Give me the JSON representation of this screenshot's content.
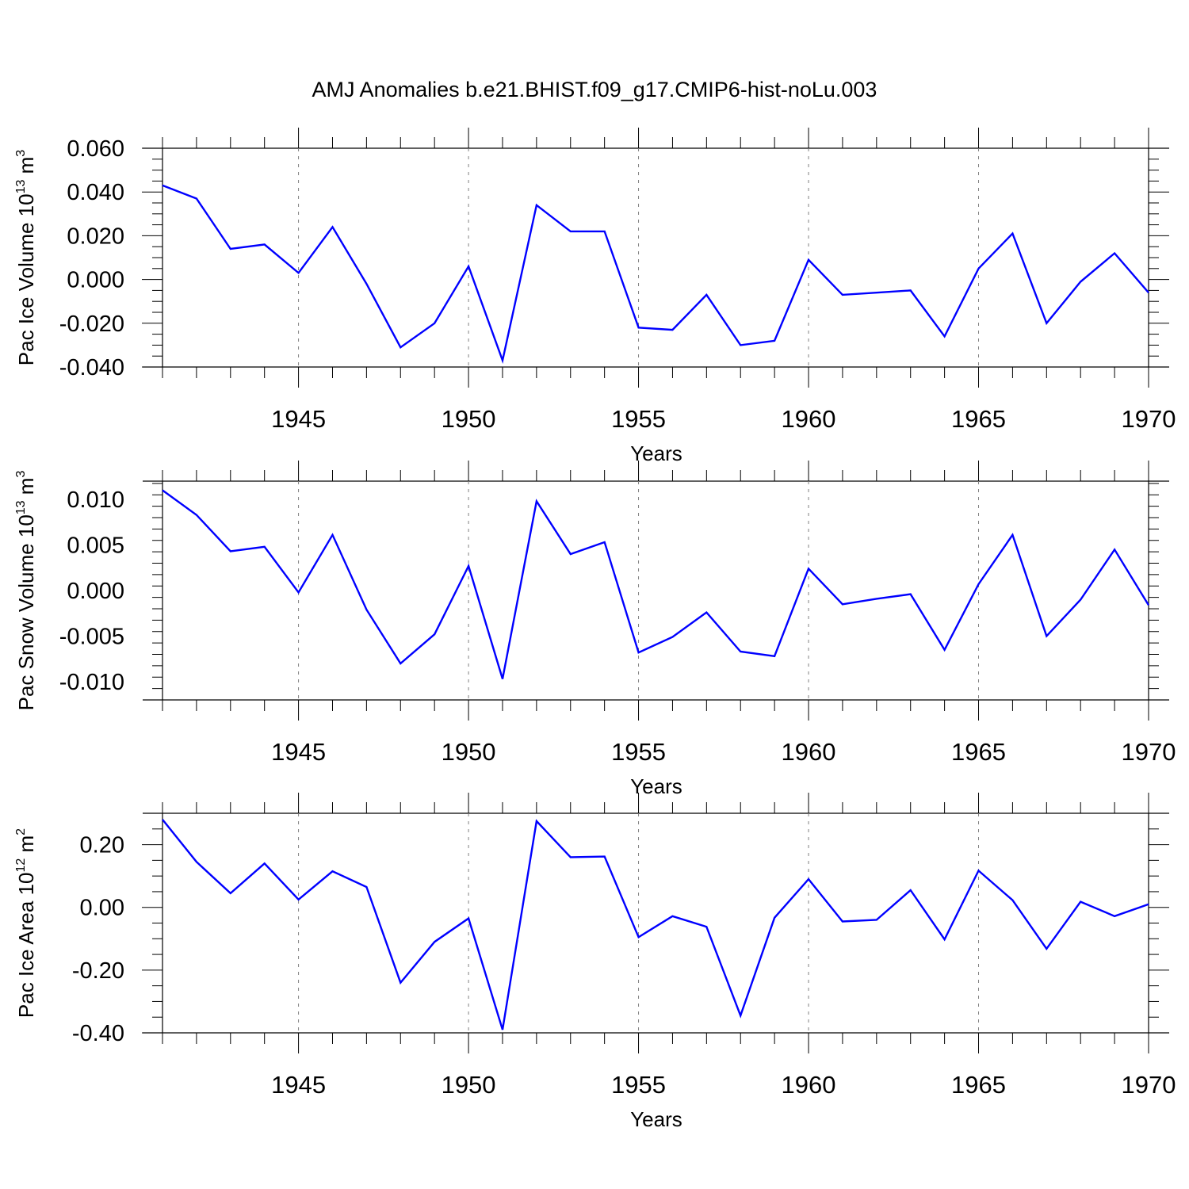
{
  "title": "AMJ Anomalies b.e21.BHIST.f09_g17.CMIP6-hist-noLu.003",
  "colors": {
    "line": "#0000ff",
    "axis": "#000000",
    "grid": "#808080"
  },
  "chart_data": [
    {
      "type": "line",
      "ylabel": "Pac Ice Volume 10",
      "ylabel_sup": "13",
      "ylabel_unit": " m",
      "ylabel_unit_sup": "3",
      "xlabel": "Years",
      "xlim": [
        1941,
        1970
      ],
      "ylim": [
        -0.04,
        0.06
      ],
      "yticks": [
        -0.04,
        -0.02,
        0.0,
        0.02,
        0.04,
        0.06
      ],
      "ytick_labels": [
        "-0.040",
        "-0.020",
        "0.000",
        "0.020",
        "0.040",
        "0.060"
      ],
      "xticks": [
        1945,
        1950,
        1955,
        1960,
        1965,
        1970
      ],
      "xtick_labels": [
        "1945",
        "1950",
        "1955",
        "1960",
        "1965",
        "1970"
      ],
      "grid": "vertical dashed at major x ticks",
      "x": [
        1941,
        1942,
        1943,
        1944,
        1945,
        1946,
        1947,
        1948,
        1949,
        1950,
        1951,
        1952,
        1953,
        1954,
        1955,
        1956,
        1957,
        1958,
        1959,
        1960,
        1961,
        1962,
        1963,
        1964,
        1965,
        1966,
        1967,
        1968,
        1969,
        1970
      ],
      "y": [
        0.043,
        0.037,
        0.014,
        0.016,
        0.003,
        0.024,
        -0.002,
        -0.031,
        -0.02,
        0.006,
        -0.037,
        0.034,
        0.022,
        0.022,
        -0.022,
        -0.023,
        -0.007,
        -0.03,
        -0.028,
        0.009,
        -0.007,
        -0.006,
        -0.005,
        -0.026,
        0.005,
        0.021,
        -0.02,
        -0.001,
        0.012,
        -0.006
      ]
    },
    {
      "type": "line",
      "ylabel": "Pac Snow Volume 10",
      "ylabel_sup": "13",
      "ylabel_unit": " m",
      "ylabel_unit_sup": "3",
      "xlabel": "Years",
      "xlim": [
        1941,
        1970
      ],
      "ylim": [
        -0.012,
        0.012
      ],
      "yticks": [
        -0.01,
        -0.005,
        0.0,
        0.005,
        0.01
      ],
      "ytick_labels": [
        "-0.010",
        "-0.005",
        "0.000",
        "0.005",
        "0.010"
      ],
      "xticks": [
        1945,
        1950,
        1955,
        1960,
        1965,
        1970
      ],
      "xtick_labels": [
        "1945",
        "1950",
        "1955",
        "1960",
        "1965",
        "1970"
      ],
      "grid": "vertical dashed at major x ticks",
      "x": [
        1941,
        1942,
        1943,
        1944,
        1945,
        1946,
        1947,
        1948,
        1949,
        1950,
        1951,
        1952,
        1953,
        1954,
        1955,
        1956,
        1957,
        1958,
        1959,
        1960,
        1961,
        1962,
        1963,
        1964,
        1965,
        1966,
        1967,
        1968,
        1969,
        1970
      ],
      "y": [
        0.011,
        0.0083,
        0.0043,
        0.0048,
        -0.0002,
        0.0061,
        -0.0021,
        -0.008,
        -0.0048,
        0.0027,
        -0.0097,
        0.0098,
        0.004,
        0.0053,
        -0.0068,
        -0.0051,
        -0.0024,
        -0.0067,
        -0.0072,
        0.0024,
        -0.0015,
        -0.0009,
        -0.0004,
        -0.0065,
        0.0007,
        0.0061,
        -0.005,
        -0.001,
        0.0045,
        -0.0016
      ]
    },
    {
      "type": "line",
      "ylabel": "Pac Ice Area 10",
      "ylabel_sup": "12",
      "ylabel_unit": " m",
      "ylabel_unit_sup": "2",
      "xlabel": "Years",
      "xlim": [
        1941,
        1970
      ],
      "ylim": [
        -0.4,
        0.3
      ],
      "yticks": [
        -0.4,
        -0.2,
        0.0,
        0.2
      ],
      "ytick_labels": [
        "-0.40",
        "-0.20",
        "0.00",
        "0.20"
      ],
      "xticks": [
        1945,
        1950,
        1955,
        1960,
        1965,
        1970
      ],
      "xtick_labels": [
        "1945",
        "1950",
        "1955",
        "1960",
        "1965",
        "1970"
      ],
      "grid": "vertical dashed at major x ticks",
      "x": [
        1941,
        1942,
        1943,
        1944,
        1945,
        1946,
        1947,
        1948,
        1949,
        1950,
        1951,
        1952,
        1953,
        1954,
        1955,
        1956,
        1957,
        1958,
        1959,
        1960,
        1961,
        1962,
        1963,
        1964,
        1965,
        1966,
        1967,
        1968,
        1969,
        1970
      ],
      "y": [
        0.28,
        0.145,
        0.045,
        0.14,
        0.025,
        0.115,
        0.065,
        -0.24,
        -0.11,
        -0.035,
        -0.39,
        0.275,
        0.16,
        0.162,
        -0.095,
        -0.028,
        -0.062,
        -0.345,
        -0.033,
        0.09,
        -0.045,
        -0.04,
        0.055,
        -0.102,
        0.117,
        0.023,
        -0.132,
        0.018,
        -0.028,
        0.01
      ]
    }
  ]
}
